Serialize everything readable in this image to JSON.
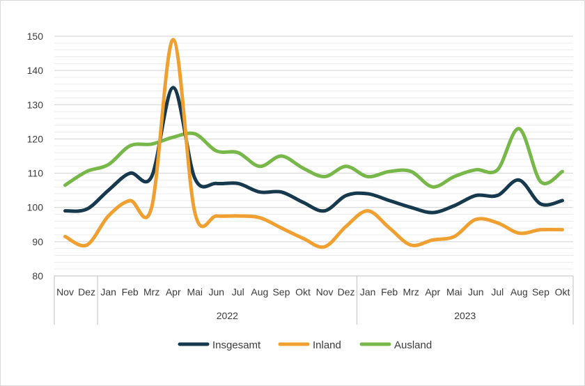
{
  "chart_data": {
    "type": "line",
    "title": "",
    "xlabel": "",
    "ylabel": "",
    "ylim": [
      80,
      150
    ],
    "yticks": [
      80,
      90,
      100,
      110,
      120,
      130,
      140,
      150
    ],
    "categories": [
      "Nov",
      "Dez",
      "Jan",
      "Feb",
      "Mrz",
      "Apr",
      "Mai",
      "Jun",
      "Jul",
      "Aug",
      "Sep",
      "Okt",
      "Nov",
      "Dez",
      "Jan",
      "Feb",
      "Mrz",
      "Apr",
      "Mai",
      "Jun",
      "Jul",
      "Aug",
      "Sep",
      "Okt"
    ],
    "year_groups": [
      {
        "label": "",
        "start": 0,
        "end": 1
      },
      {
        "label": "2022",
        "start": 2,
        "end": 13
      },
      {
        "label": "2023",
        "start": 14,
        "end": 23
      }
    ],
    "series": [
      {
        "name": "Insgesamt",
        "color": "#17394d",
        "values": [
          99,
          99.5,
          105,
          110,
          109,
          135,
          108.5,
          107,
          107,
          104.5,
          104.5,
          101.5,
          99,
          103.5,
          104,
          102,
          100,
          98.5,
          100.5,
          103.5,
          103.5,
          108,
          101,
          102
        ]
      },
      {
        "name": "Inland",
        "color": "#f0a030",
        "values": [
          91.5,
          89,
          97.5,
          102,
          100,
          149,
          98.5,
          97.5,
          97.5,
          97,
          94,
          91,
          88.5,
          94.5,
          99,
          94,
          89,
          90.5,
          91.5,
          96.5,
          95.5,
          92.5,
          93.5,
          93.5
        ]
      },
      {
        "name": "Ausland",
        "color": "#78b84a",
        "values": [
          106.5,
          110.5,
          112.5,
          118,
          118.5,
          120.5,
          121.5,
          116.5,
          116,
          112,
          115,
          111.5,
          109,
          112,
          109,
          110.5,
          110.5,
          106,
          109,
          111,
          111,
          123,
          107.5,
          110.5
        ]
      }
    ]
  }
}
